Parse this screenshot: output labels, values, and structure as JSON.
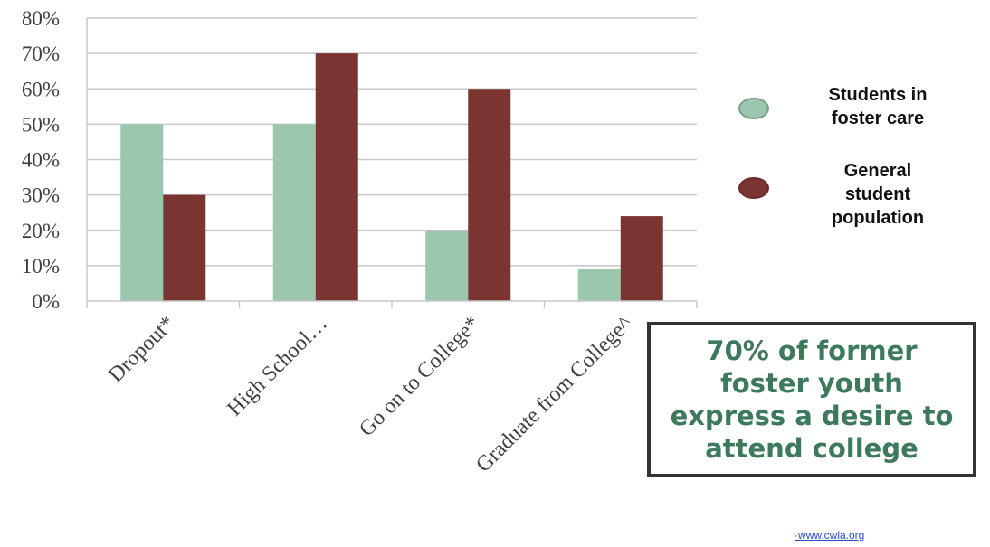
{
  "chart_data": {
    "type": "bar",
    "categories": [
      "Dropout*",
      "High School…",
      "Go on to College*",
      "Graduate from College^"
    ],
    "series": [
      {
        "name": "Students in foster care",
        "values": [
          50,
          50,
          20,
          9
        ],
        "color": "#9cc7ae"
      },
      {
        "name": "General student population",
        "values": [
          30,
          70,
          60,
          24
        ],
        "color": "#7b3530"
      }
    ],
    "y_ticks": [
      "0%",
      "10%",
      "20%",
      "30%",
      "40%",
      "50%",
      "60%",
      "70%",
      "80%"
    ],
    "ylim": [
      0,
      80
    ],
    "grid": true,
    "legend_position": "right"
  },
  "legend": {
    "items": [
      {
        "label": "Students in foster care",
        "lines": [
          "Students in",
          "foster care"
        ],
        "color": "#9cc7ae"
      },
      {
        "label": "General student population",
        "lines": [
          "General",
          "student",
          "population"
        ],
        "color": "#7b3530"
      }
    ]
  },
  "callout": {
    "text": "70% of former foster youth express a desire to attend college",
    "color": "#3d7a5c"
  },
  "source": "·www.cwla.org"
}
